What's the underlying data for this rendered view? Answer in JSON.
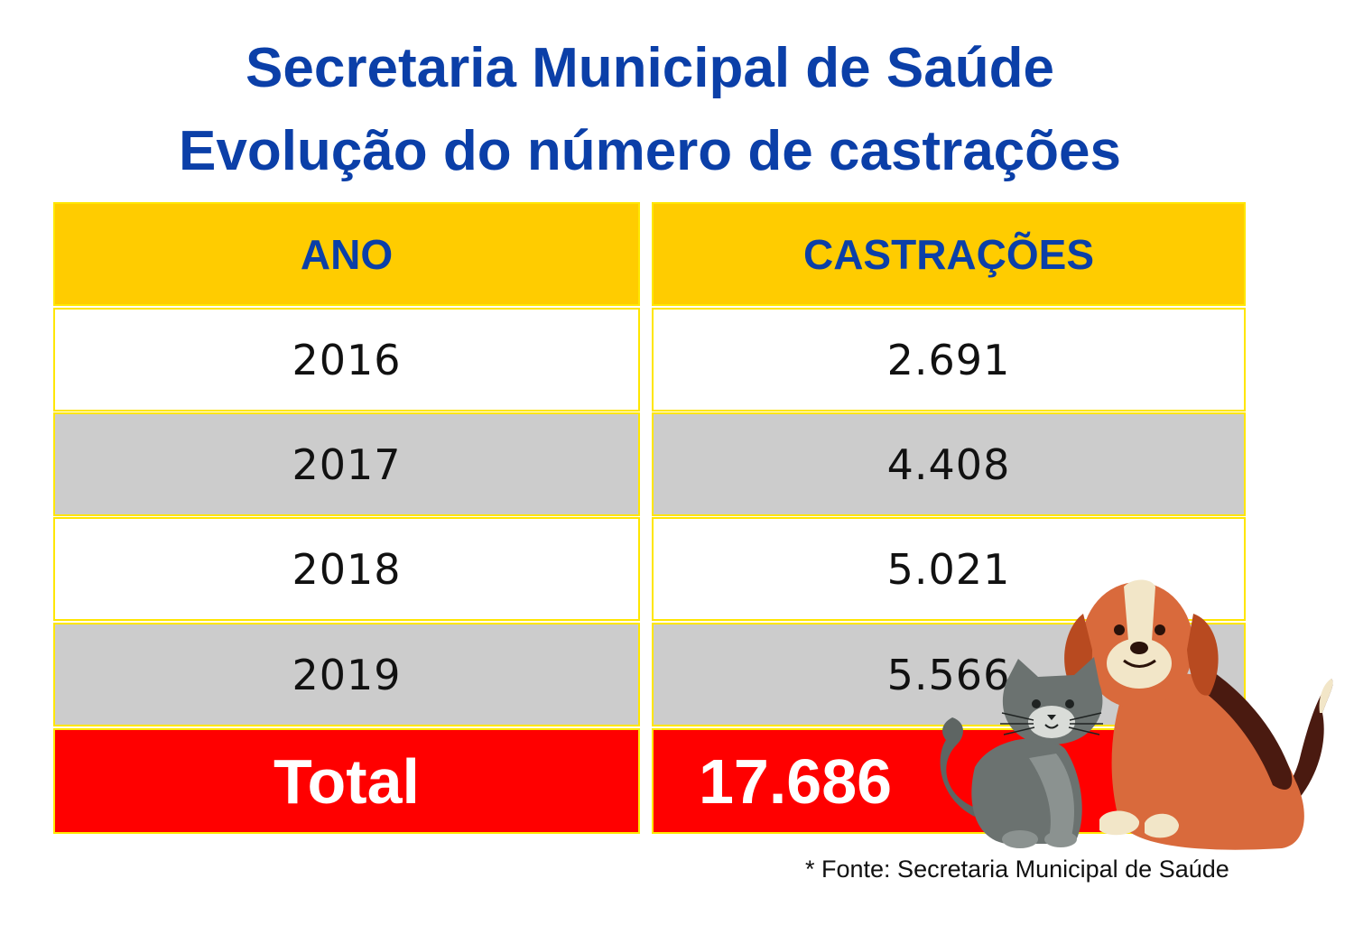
{
  "title": "Secretaria Municipal de Saúde",
  "subtitle": "Evolução do número de castrações",
  "chart_data": {
    "type": "table",
    "columns": [
      "ANO",
      "CASTRAÇÕES"
    ],
    "rows": [
      {
        "year": "2016",
        "value": "2.691"
      },
      {
        "year": "2017",
        "value": "4.408"
      },
      {
        "year": "2018",
        "value": "5.021"
      },
      {
        "year": "2019",
        "value": "5.566"
      }
    ],
    "total_label": "Total",
    "total_value": "17.686"
  },
  "source": "* Fonte: Secretaria Municipal de Saúde",
  "colors": {
    "title": "#0b3fa8",
    "header_bg": "#ffcc00",
    "row_alt_bg": "#cccccc",
    "total_bg": "#ff0000",
    "border": "#ffe600"
  },
  "illustration": "cat-and-dog-illustration"
}
